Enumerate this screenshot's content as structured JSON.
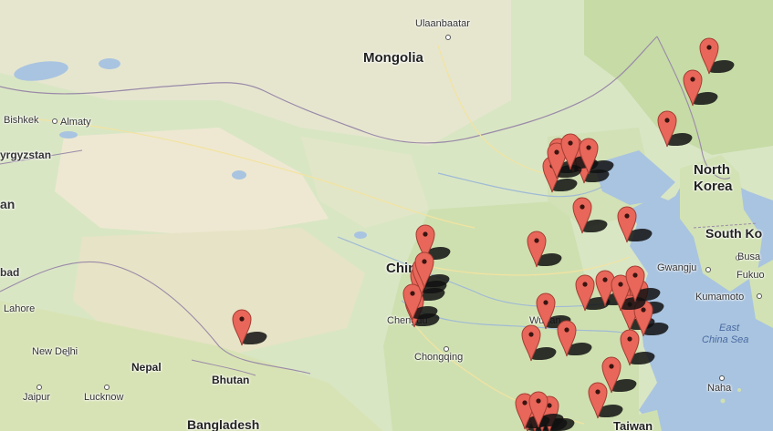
{
  "map": {
    "labels": {
      "ulaanbaatar": "Ulaanbaatar",
      "mongolia": "Mongolia",
      "bishkek": "Bishkek",
      "almaty": "Almaty",
      "kyrgyzstan": "yrgyzstan",
      "an_left": "an",
      "china": "China",
      "north_korea_1": "North",
      "north_korea_2": "Korea",
      "south_korea": "South Ko",
      "gwangju": "Gwangju",
      "fukuoka_1": "Fukuo",
      "busan_cut": "Busa",
      "kumamoto": "Kumamoto",
      "east_china_sea_1": "East",
      "east_china_sea_2": "China Sea",
      "naha": "Naha",
      "bad_left": "bad",
      "lahore": "Lahore",
      "new_delhi": "New Delhi",
      "nepal": "Nepal",
      "bhutan": "Bhutan",
      "jaipur": "Jaipur",
      "lucknow": "Lucknow",
      "bangladesh": "Bangladesh",
      "chengdu": "Chengdu",
      "chongqing": "Chongqing",
      "wuhan": "Wuhan",
      "taiwan": "Taiwan"
    },
    "pin_count": 40,
    "colors": {
      "land": "#d9e6c4",
      "land_light": "#ece9d6",
      "water": "#a9c4e0",
      "pin": "#e8675a",
      "pin_border": "#a33d33"
    }
  }
}
